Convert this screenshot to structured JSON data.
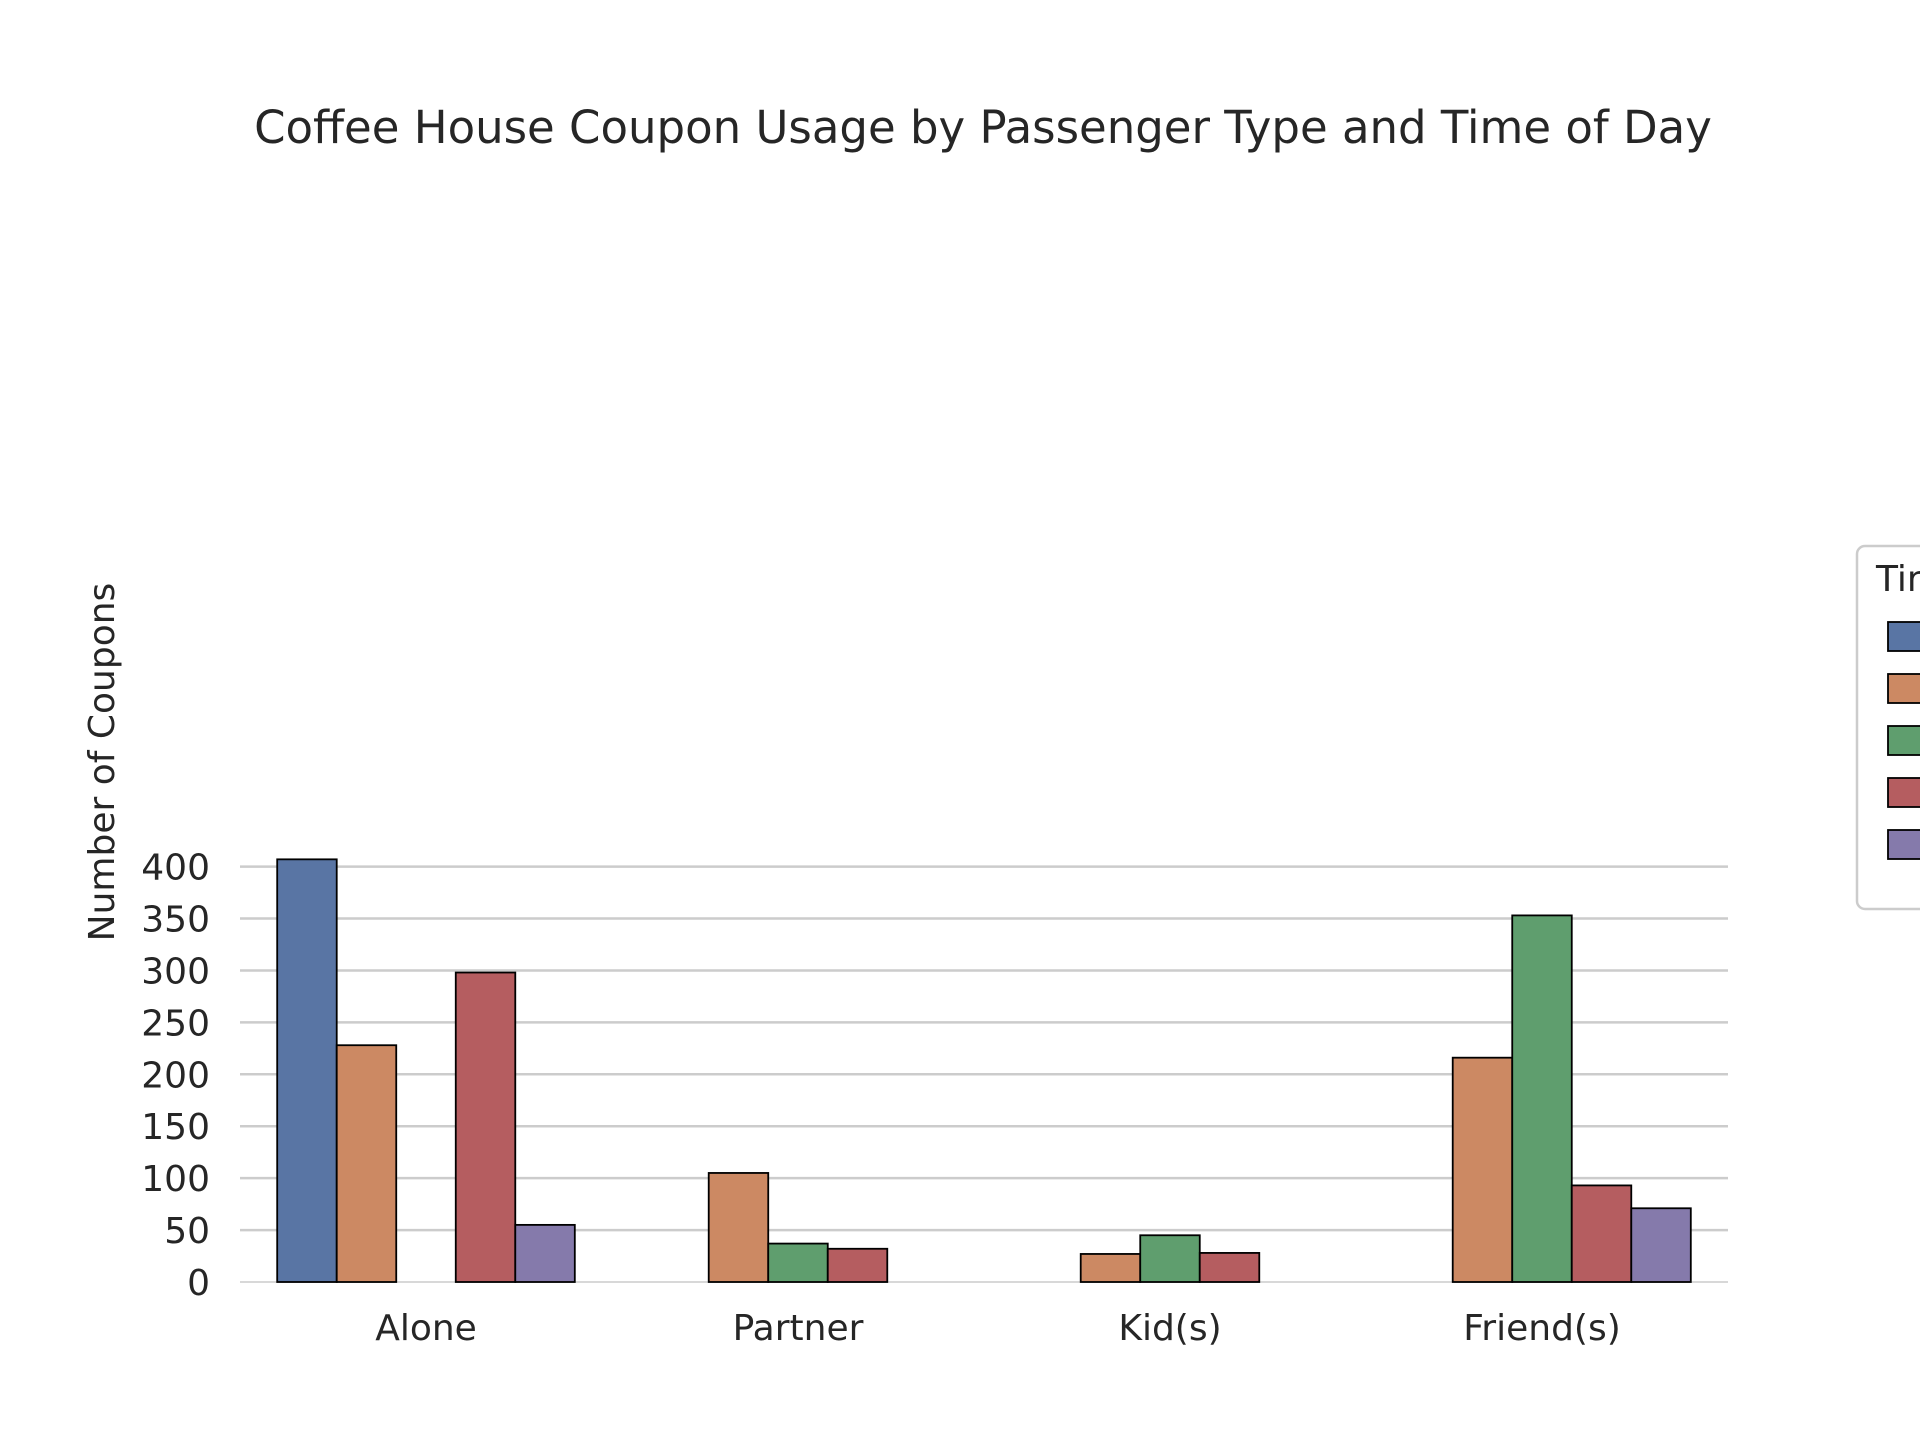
{
  "chart_data": {
    "type": "bar",
    "title": "Coffee House Coupon Usage by Passenger Type and Time of Day",
    "xlabel": "",
    "ylabel": "Number of Coupons",
    "categories": [
      "Alone",
      "Partner",
      "Kid(s)",
      "Friend(s)"
    ],
    "ylim": [
      0,
      420
    ],
    "yticks": [
      0,
      50,
      100,
      150,
      200,
      250,
      300,
      350,
      400
    ],
    "grid": true,
    "legend": {
      "position": "right",
      "title": "Tir"
    },
    "series": [
      {
        "color": "#5975a4",
        "values": [
          407,
          null,
          null,
          null
        ]
      },
      {
        "color": "#cc8963",
        "values": [
          228,
          105,
          27,
          216
        ]
      },
      {
        "color": "#5f9e6e",
        "values": [
          null,
          37,
          45,
          353
        ]
      },
      {
        "color": "#b55d60",
        "values": [
          298,
          32,
          28,
          93
        ]
      },
      {
        "color": "#857aab",
        "values": [
          55,
          null,
          null,
          71
        ]
      }
    ]
  }
}
